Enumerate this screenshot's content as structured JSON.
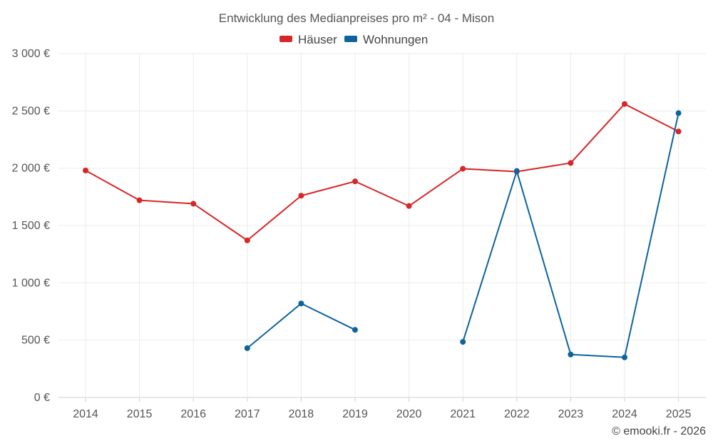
{
  "chart_data": {
    "type": "line",
    "title": "Entwicklung des Medianpreises pro m² - 04 - Mison",
    "categories": [
      "2014",
      "2015",
      "2016",
      "2017",
      "2018",
      "2019",
      "2020",
      "2021",
      "2022",
      "2023",
      "2024",
      "2025"
    ],
    "yticks": [
      "0 €",
      "500 €",
      "1 000 €",
      "1 500 €",
      "2 000 €",
      "2 500 €",
      "3 000 €"
    ],
    "ylim": [
      0,
      3000
    ],
    "ytick_values": [
      0,
      500,
      1000,
      1500,
      2000,
      2500,
      3000
    ],
    "legend_position": "top-center",
    "grid": true,
    "series": [
      {
        "name": "Häuser",
        "color": "#d62728",
        "values": [
          1980,
          1720,
          1690,
          1370,
          1760,
          1885,
          1670,
          1995,
          1970,
          2045,
          2560,
          2320
        ]
      },
      {
        "name": "Wohnungen",
        "color": "#0e639c",
        "values": [
          null,
          null,
          null,
          430,
          820,
          590,
          null,
          485,
          1975,
          375,
          350,
          2480
        ]
      }
    ]
  },
  "credit": "© emooki.fr - 2026"
}
